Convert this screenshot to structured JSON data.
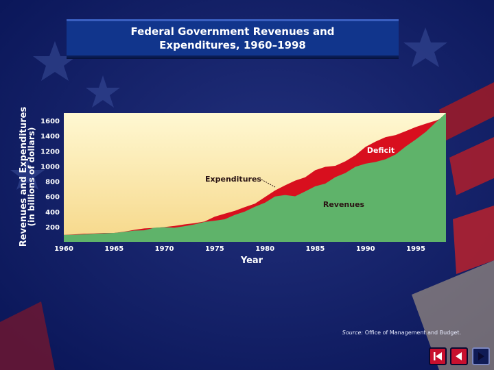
{
  "slide": {
    "title": "Federal Government Revenues and Expenditures, 1960–1998",
    "source_label": "Source:",
    "source_text": "Office of Management and Budget."
  },
  "colors": {
    "expenditures": "#d80f1e",
    "revenues": "#5fb36a",
    "plot_top": "#fff8d2",
    "plot_bottom": "#f6d88a",
    "text": "#ffffff",
    "banner": "#11358c"
  },
  "nav": {
    "buttons": [
      {
        "name": "first-slide-icon"
      },
      {
        "name": "previous-slide-icon"
      },
      {
        "name": "next-slide-icon"
      }
    ]
  },
  "chart_data": {
    "type": "area",
    "title": "Federal Government Revenues and Expenditures, 1960–1998",
    "xlabel": "Year",
    "ylabel": "Revenues and Expenditures (in billions of dollars)",
    "xlim": [
      1960,
      1998
    ],
    "ylim": [
      0,
      1700
    ],
    "xticks": [
      1960,
      1965,
      1970,
      1975,
      1980,
      1985,
      1990,
      1995
    ],
    "yticks": [
      200,
      400,
      600,
      800,
      1000,
      1200,
      1400,
      1600
    ],
    "annotations": [
      "Expenditures",
      "Revenues",
      "Deficit"
    ],
    "x": [
      1960,
      1961,
      1962,
      1963,
      1964,
      1965,
      1966,
      1967,
      1968,
      1969,
      1970,
      1971,
      1972,
      1973,
      1974,
      1975,
      1976,
      1977,
      1978,
      1979,
      1980,
      1981,
      1982,
      1983,
      1984,
      1985,
      1986,
      1987,
      1988,
      1989,
      1990,
      1991,
      1992,
      1993,
      1994,
      1995,
      1996,
      1997,
      1998
    ],
    "series": [
      {
        "name": "Expenditures",
        "values": [
          92,
          98,
          107,
          111,
          118,
          118,
          135,
          158,
          178,
          184,
          196,
          210,
          231,
          246,
          269,
          332,
          372,
          409,
          459,
          504,
          591,
          678,
          746,
          808,
          852,
          946,
          990,
          1004,
          1064,
          1144,
          1253,
          1324,
          1382,
          1410,
          1462,
          1516,
          1560,
          1601,
          1652
        ]
      },
      {
        "name": "Revenues",
        "values": [
          92,
          94,
          100,
          107,
          113,
          117,
          131,
          149,
          153,
          187,
          193,
          187,
          207,
          231,
          263,
          279,
          298,
          356,
          400,
          463,
          517,
          599,
          618,
          601,
          666,
          734,
          769,
          854,
          909,
          991,
          1032,
          1055,
          1091,
          1154,
          1259,
          1352,
          1453,
          1579,
          1722
        ]
      }
    ]
  }
}
